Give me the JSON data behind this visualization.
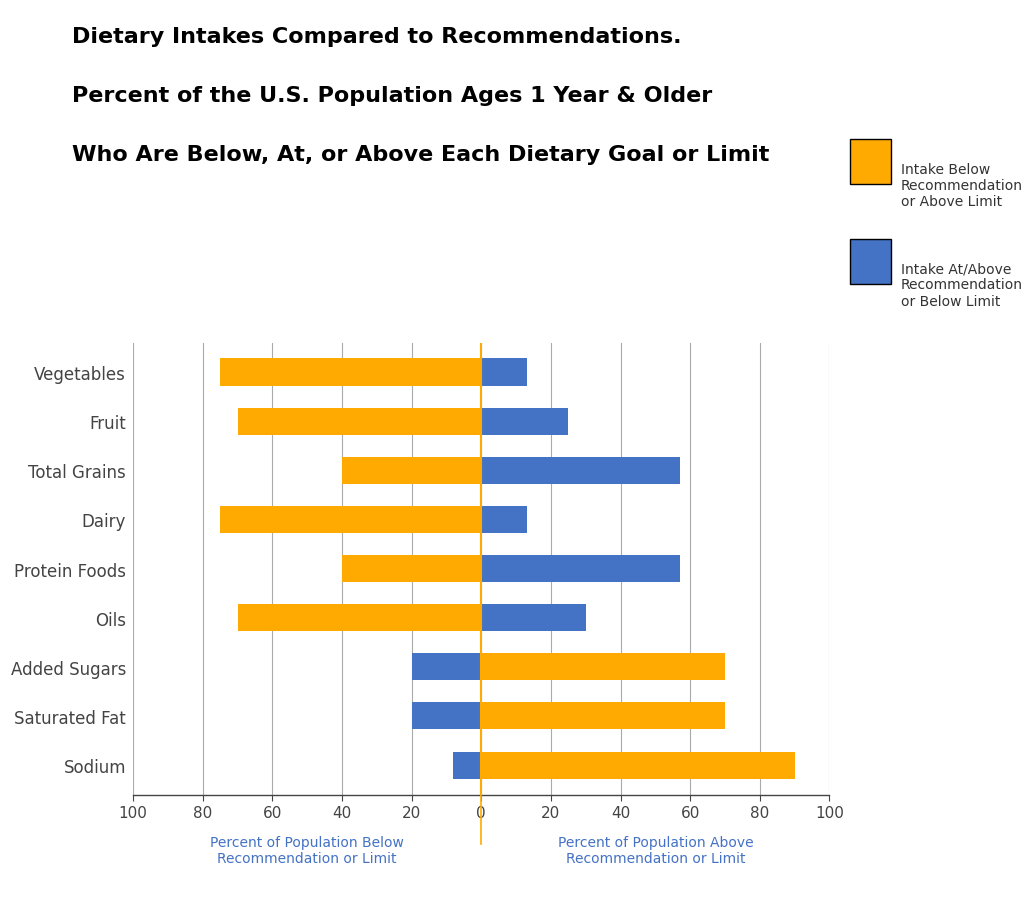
{
  "title_lines": [
    "Dietary Intakes Compared to Recommendations.",
    "Percent of the U.S. Population Ages 1 Year & Older",
    "Who Are Below, At, or Above Each Dietary Goal or Limit"
  ],
  "categories": [
    "Vegetables",
    "Fruit",
    "Total Grains",
    "Dairy",
    "Protein Foods",
    "Oils",
    "Added Sugars",
    "Saturated Fat",
    "Sodium"
  ],
  "bars": [
    [
      -75,
      13,
      "#FFAA00",
      "#4472C4"
    ],
    [
      -70,
      25,
      "#FFAA00",
      "#4472C4"
    ],
    [
      -40,
      57,
      "#FFAA00",
      "#4472C4"
    ],
    [
      -75,
      13,
      "#FFAA00",
      "#4472C4"
    ],
    [
      -40,
      57,
      "#FFAA00",
      "#4472C4"
    ],
    [
      -70,
      30,
      "#FFAA00",
      "#4472C4"
    ],
    [
      -20,
      70,
      "#4472C4",
      "#FFAA00"
    ],
    [
      -20,
      70,
      "#4472C4",
      "#FFAA00"
    ],
    [
      -8,
      90,
      "#4472C4",
      "#FFAA00"
    ]
  ],
  "orange_color": "#FFAA00",
  "blue_color": "#4472C4",
  "center_line_color": "#FFAA00",
  "background_color": "#FFFFFF",
  "xlabel_left": "Percent of Population Below\nRecommendation or Limit",
  "xlabel_right": "Percent of Population Above\nRecommendation or Limit",
  "legend_orange": "Intake Below\nRecommendation\nor Above Limit",
  "legend_blue": "Intake At/Above\nRecommendation\nor Below Limit",
  "xtick_labels": [
    "100",
    "80",
    "60",
    "40",
    "20",
    "0",
    "20",
    "40",
    "60",
    "80",
    "100"
  ],
  "xtick_positions": [
    -100,
    -80,
    -60,
    -40,
    -20,
    0,
    20,
    40,
    60,
    80,
    100
  ],
  "bar_height": 0.55,
  "title_fontsize": 16,
  "axis_label_fontsize": 10,
  "tick_fontsize": 11,
  "ylabel_fontsize": 11,
  "legend_fontsize": 10,
  "grid_color": "#AAAAAA",
  "tick_color": "#444444",
  "xlabel_color": "#4472C4",
  "ylabel_color": "#666666"
}
